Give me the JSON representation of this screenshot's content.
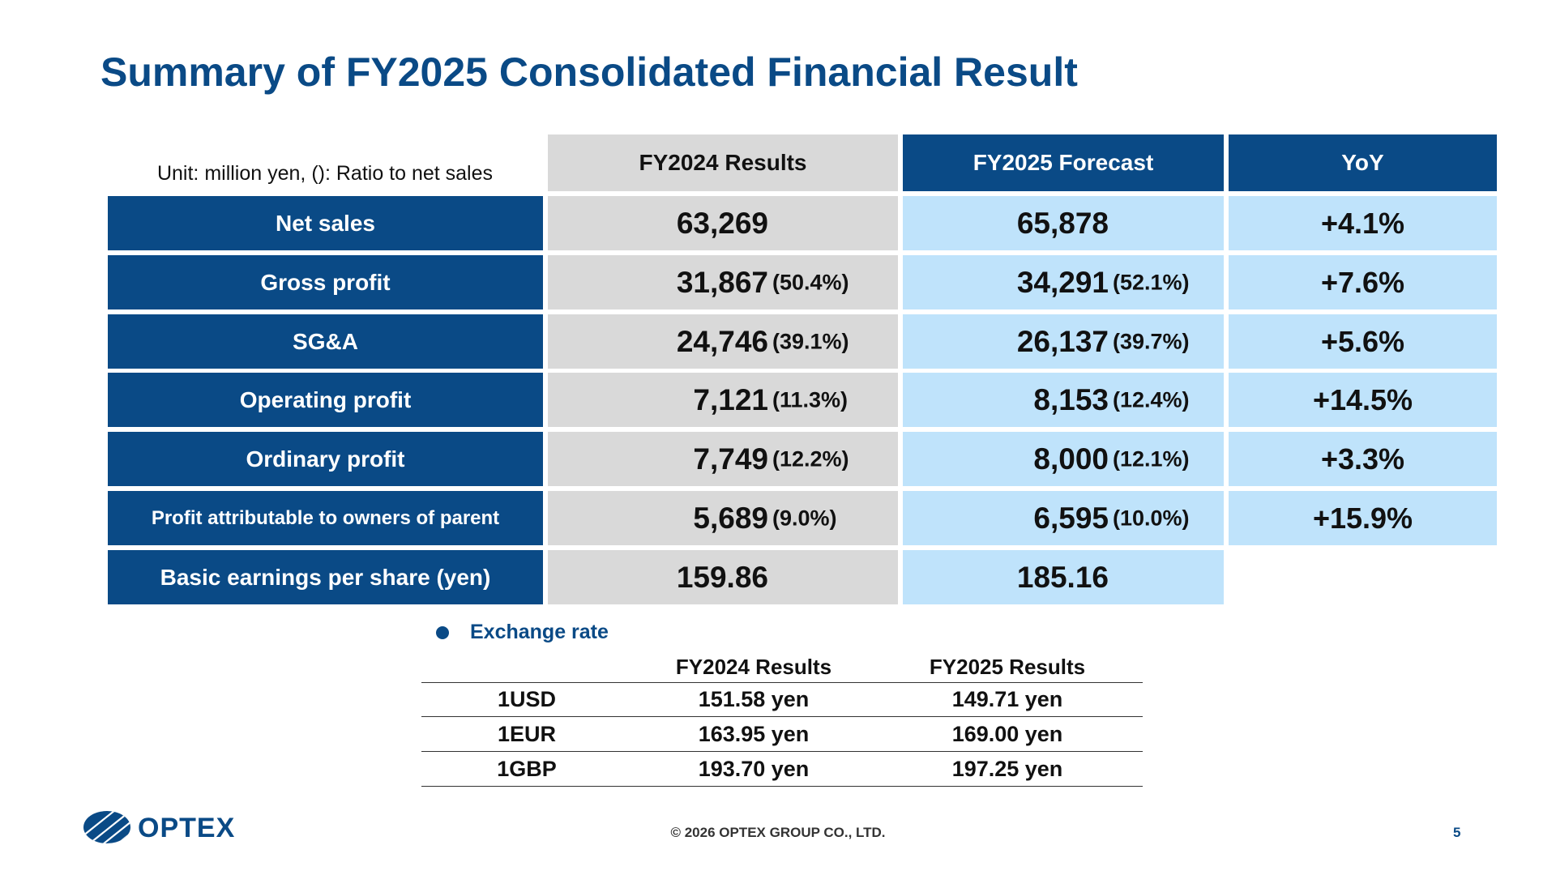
{
  "title": "Summary of FY2025 Consolidated Financial Result",
  "unit_note": "Unit: million yen, (): Ratio to net sales",
  "columns": {
    "fy2024": "FY2024 Results",
    "fy2025": "FY2025 Forecast",
    "yoy": "YoY"
  },
  "rows": [
    {
      "label": "Net sales",
      "fy2024": "63,269",
      "fy2024_ratio": "",
      "fy2025": "65,878",
      "fy2025_ratio": "",
      "yoy": "+4.1%"
    },
    {
      "label": "Gross profit",
      "fy2024": "31,867",
      "fy2024_ratio": "(50.4%)",
      "fy2025": "34,291",
      "fy2025_ratio": "(52.1%)",
      "yoy": "+7.6%"
    },
    {
      "label": "SG&A",
      "fy2024": "24,746",
      "fy2024_ratio": "(39.1%)",
      "fy2025": "26,137",
      "fy2025_ratio": "(39.7%)",
      "yoy": "+5.6%"
    },
    {
      "label": "Operating profit",
      "fy2024": "7,121",
      "fy2024_ratio": "(11.3%)",
      "fy2025": "8,153",
      "fy2025_ratio": "(12.4%)",
      "yoy": "+14.5%"
    },
    {
      "label": "Ordinary profit",
      "fy2024": "7,749",
      "fy2024_ratio": "(12.2%)",
      "fy2025": "8,000",
      "fy2025_ratio": "(12.1%)",
      "yoy": "+3.3%"
    },
    {
      "label": "Profit attributable to owners of parent",
      "fy2024": "5,689",
      "fy2024_ratio": "(9.0%)",
      "fy2025": "6,595",
      "fy2025_ratio": "(10.0%)",
      "yoy": "+15.9%"
    },
    {
      "label": "Basic earnings per share (yen)",
      "fy2024": "159.86",
      "fy2024_ratio": "",
      "fy2025": "185.16",
      "fy2025_ratio": "",
      "yoy": ""
    }
  ],
  "exchange": {
    "title": "Exchange rate",
    "col1": "FY2024 Results",
    "col2": "FY2025 Results",
    "rows": [
      {
        "currency": "1USD",
        "fy2024": "151.58 yen",
        "fy2025": "149.71 yen"
      },
      {
        "currency": "1EUR",
        "fy2024": "163.95 yen",
        "fy2025": "169.00 yen"
      },
      {
        "currency": "1GBP",
        "fy2024": "193.70 yen",
        "fy2025": "197.25 yen"
      }
    ]
  },
  "logo_text": "OPTEX",
  "footer": "© 2026 OPTEX GROUP CO., LTD.",
  "page_number": "5",
  "colors": {
    "navy": "#0a4a86",
    "gray": "#d9d9d9",
    "light_blue": "#bfe3fb"
  }
}
